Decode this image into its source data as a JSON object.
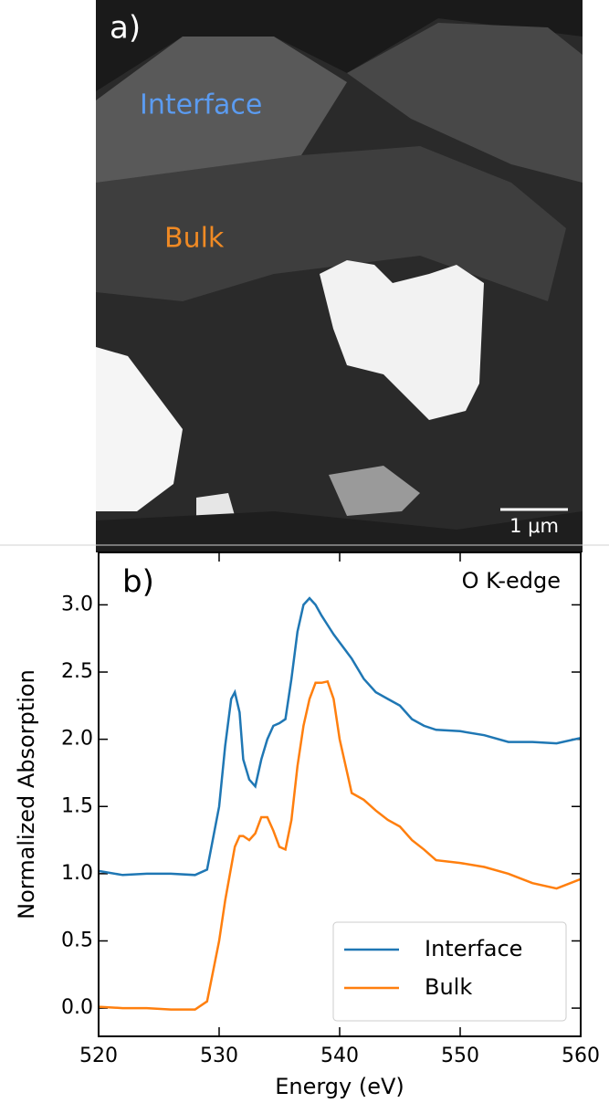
{
  "image_panel": {
    "label": "a)",
    "region_1": "Interface",
    "region_2": "Bulk",
    "scale_bar": "1 μm"
  },
  "chart_data": {
    "type": "line",
    "panel_label": "b)",
    "annotation": "O K-edge",
    "x_label": "Energy (eV)",
    "y_label": "Normalized Absorption",
    "x": [
      520,
      522,
      524,
      526,
      528,
      529,
      530,
      530.5,
      531,
      531.3,
      531.7,
      532,
      532.5,
      533,
      533.5,
      534,
      534.5,
      535,
      535.5,
      536,
      536.5,
      537,
      537.5,
      538,
      538.5,
      539,
      539.5,
      540,
      541,
      542,
      543,
      544,
      545,
      546,
      547,
      548,
      550,
      552,
      554,
      556,
      558,
      560
    ],
    "series": [
      {
        "name": "Interface",
        "color": "#1f77b4",
        "values": [
          1.02,
          0.99,
          1.0,
          1.0,
          0.99,
          1.03,
          1.5,
          1.95,
          2.3,
          2.35,
          2.2,
          1.85,
          1.7,
          1.65,
          1.85,
          2.0,
          2.1,
          2.12,
          2.15,
          2.45,
          2.8,
          3.0,
          3.05,
          3.0,
          2.92,
          2.85,
          2.78,
          2.72,
          2.6,
          2.45,
          2.35,
          2.3,
          2.25,
          2.15,
          2.1,
          2.07,
          2.06,
          2.03,
          1.98,
          1.98,
          1.97,
          2.01
        ]
      },
      {
        "name": "Bulk",
        "color": "#ff7f0e",
        "values": [
          0.01,
          0.0,
          0.0,
          -0.01,
          -0.01,
          0.05,
          0.5,
          0.8,
          1.05,
          1.2,
          1.28,
          1.28,
          1.25,
          1.3,
          1.42,
          1.42,
          1.32,
          1.2,
          1.18,
          1.4,
          1.8,
          2.1,
          2.3,
          2.42,
          2.42,
          2.43,
          2.3,
          2.0,
          1.6,
          1.55,
          1.47,
          1.4,
          1.35,
          1.25,
          1.18,
          1.1,
          1.08,
          1.05,
          1.0,
          0.93,
          0.89,
          0.96
        ]
      }
    ],
    "xlim": [
      520,
      560
    ],
    "xticks": [
      520,
      530,
      540,
      550,
      560
    ],
    "ylim": [
      -0.21,
      3.39
    ],
    "yticks": [
      {
        "value": 0,
        "label": "0.0"
      },
      {
        "value": 0.5,
        "label": "0.5"
      },
      {
        "value": 1,
        "label": "1.0"
      },
      {
        "value": 1.5,
        "label": "1.5"
      },
      {
        "value": 2,
        "label": "2.0"
      },
      {
        "value": 2.5,
        "label": "2.5"
      },
      {
        "value": 3,
        "label": "3.0"
      }
    ],
    "legend": "lower right"
  }
}
